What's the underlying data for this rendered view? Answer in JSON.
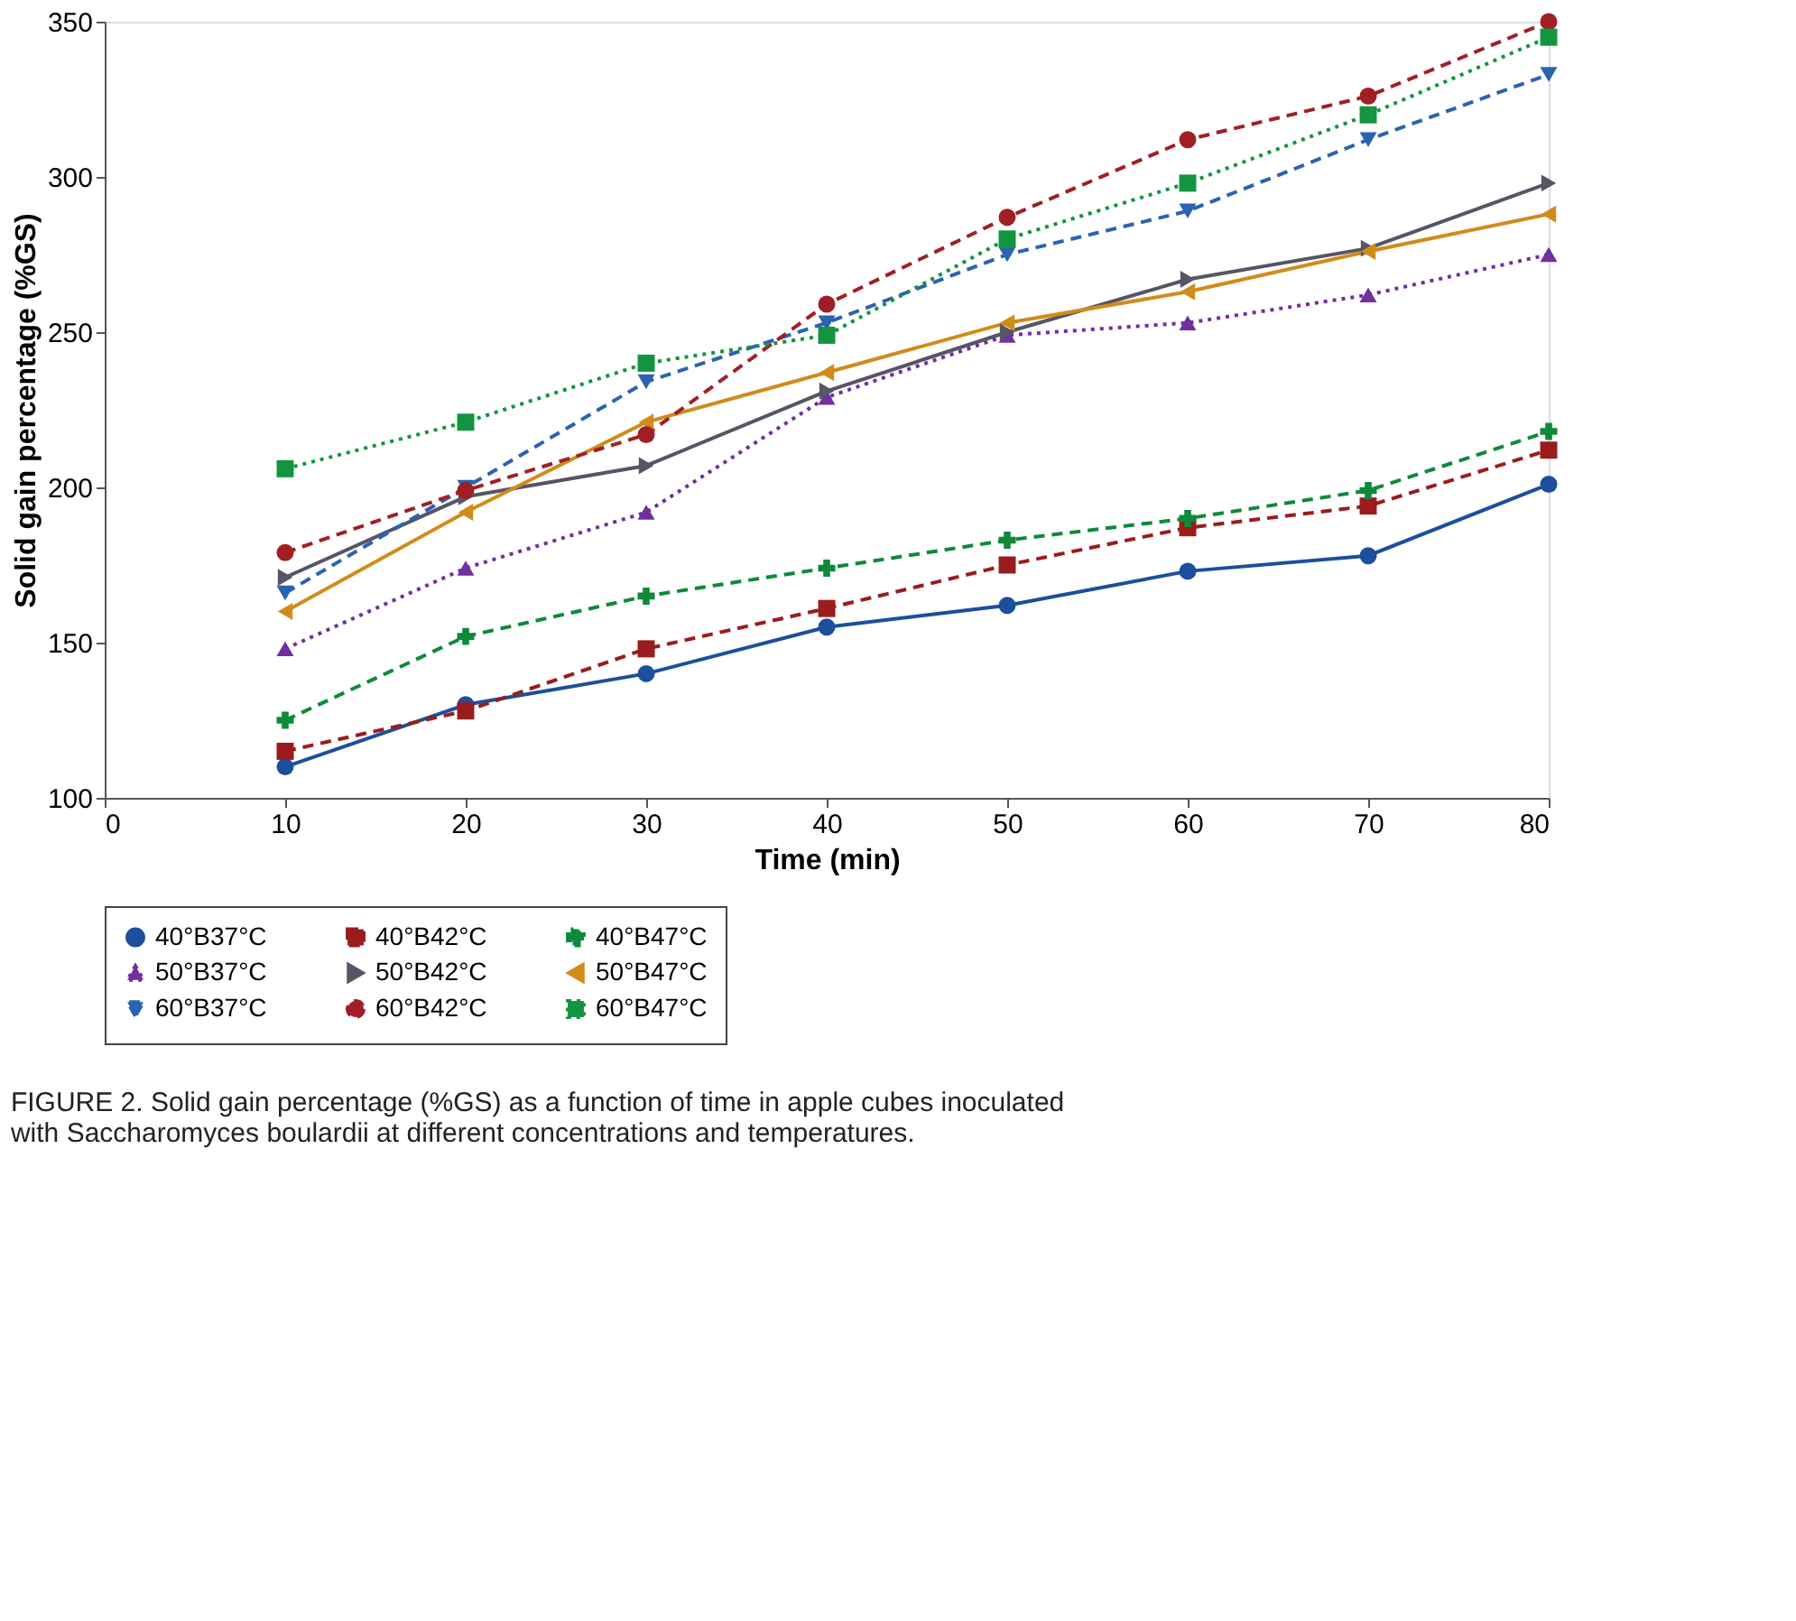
{
  "chart_data": {
    "type": "line",
    "xlabel": "Time (min)",
    "ylabel": "Solid gain percentage (%GS)",
    "x": [
      10,
      20,
      30,
      40,
      50,
      60,
      70,
      80
    ],
    "xlim": [
      0,
      80
    ],
    "xticks": [
      0,
      10,
      20,
      30,
      40,
      50,
      60,
      70,
      80
    ],
    "ylim": [
      100,
      350
    ],
    "yticks": [
      100,
      150,
      200,
      250,
      300,
      350
    ],
    "grid": false,
    "legend": "bottom",
    "series": [
      {
        "name": "40°B37°C",
        "color": "#1c4f9c",
        "marker": "circle",
        "line_style": "solid",
        "values": [
          110,
          130,
          140,
          155,
          162,
          173,
          178,
          201
        ]
      },
      {
        "name": "40°B42°C",
        "color": "#9b1c1c",
        "marker": "square",
        "line_style": "dashed",
        "values": [
          115,
          128,
          148,
          161,
          175,
          187,
          194,
          212
        ]
      },
      {
        "name": "40°B47°C",
        "color": "#0e8a3a",
        "marker": "cross",
        "line_style": "dashed",
        "values": [
          125,
          152,
          165,
          174,
          183,
          190,
          199,
          218
        ]
      },
      {
        "name": "50°B37°C",
        "color": "#7030a0",
        "marker": "triangle",
        "line_style": "dotted",
        "values": [
          148,
          174,
          192,
          229,
          249,
          253,
          262,
          275
        ]
      },
      {
        "name": "50°B42°C",
        "color": "#555566",
        "marker": "triangle-right",
        "line_style": "solid",
        "values": [
          171,
          197,
          207,
          231,
          250,
          267,
          277,
          298
        ]
      },
      {
        "name": "50°B47°C",
        "color": "#d08c1a",
        "marker": "triangle-left",
        "line_style": "solid",
        "values": [
          160,
          192,
          221,
          237,
          253,
          263,
          276,
          288
        ]
      },
      {
        "name": "60°B37°C",
        "color": "#2a63b0",
        "marker": "triangle-down",
        "line_style": "dashed",
        "values": [
          166,
          200,
          234,
          253,
          275,
          289,
          312,
          333
        ]
      },
      {
        "name": "60°B42°C",
        "color": "#a01f25",
        "marker": "circle",
        "line_style": "dashed",
        "values": [
          179,
          199,
          217,
          259,
          287,
          312,
          326,
          350
        ]
      },
      {
        "name": "60°B47°C",
        "color": "#13953f",
        "marker": "square",
        "line_style": "dotted",
        "values": [
          206,
          221,
          240,
          249,
          280,
          298,
          320,
          345
        ]
      }
    ],
    "annotations": [
      "FIGURE 2. Solid gain percentage (%GS) as a function of time in apple cubes inoculated with Saccharomyces boulardii at different concentrations and temperatures."
    ]
  }
}
